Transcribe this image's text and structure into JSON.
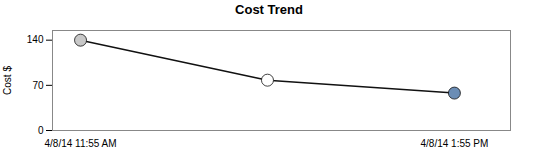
{
  "chart_data": {
    "type": "line",
    "title": "Cost Trend",
    "ylabel": "Cost $",
    "x": [
      0,
      1,
      2
    ],
    "values": [
      140,
      78,
      58
    ],
    "color": "#111111",
    "colors": [
      "#c8c8c8",
      "#ffffff",
      "#6b8db5"
    ],
    "marker": "circle",
    "xlim": [
      -0.15,
      2.3
    ],
    "xticks": [
      {
        "value": 0,
        "label": "4/8/14 11:55 AM"
      },
      {
        "value": 2,
        "label": "4/8/14 1:55 PM"
      }
    ],
    "ylim": [
      0,
      155
    ],
    "yticks": [
      0,
      70,
      140
    ],
    "grid": false
  }
}
